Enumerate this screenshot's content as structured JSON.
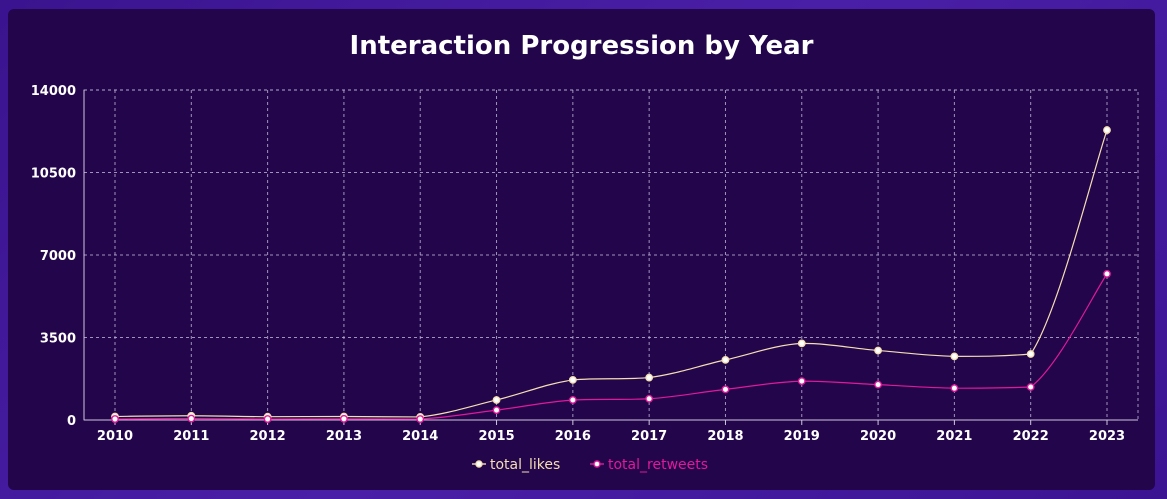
{
  "chart_data": {
    "type": "line",
    "title": "Interaction Progression by Year",
    "x": [
      "2010",
      "2011",
      "2012",
      "2013",
      "2014",
      "2015",
      "2016",
      "2017",
      "2018",
      "2019",
      "2020",
      "2021",
      "2022",
      "2023"
    ],
    "series": [
      {
        "name": "total_likes",
        "color": "#f5deb3",
        "values": [
          150,
          180,
          140,
          150,
          130,
          850,
          1700,
          1800,
          2550,
          3250,
          2950,
          2700,
          2800,
          12300
        ]
      },
      {
        "name": "total_retweets",
        "color": "#e0199c",
        "values": [
          40,
          60,
          40,
          50,
          40,
          420,
          850,
          900,
          1300,
          1650,
          1500,
          1350,
          1400,
          6200
        ]
      }
    ],
    "y_ticks": [
      0,
      3500,
      7000,
      10500,
      14000
    ],
    "ylim": [
      0,
      14000
    ],
    "grid": true,
    "legend_position": "bottom-center"
  }
}
